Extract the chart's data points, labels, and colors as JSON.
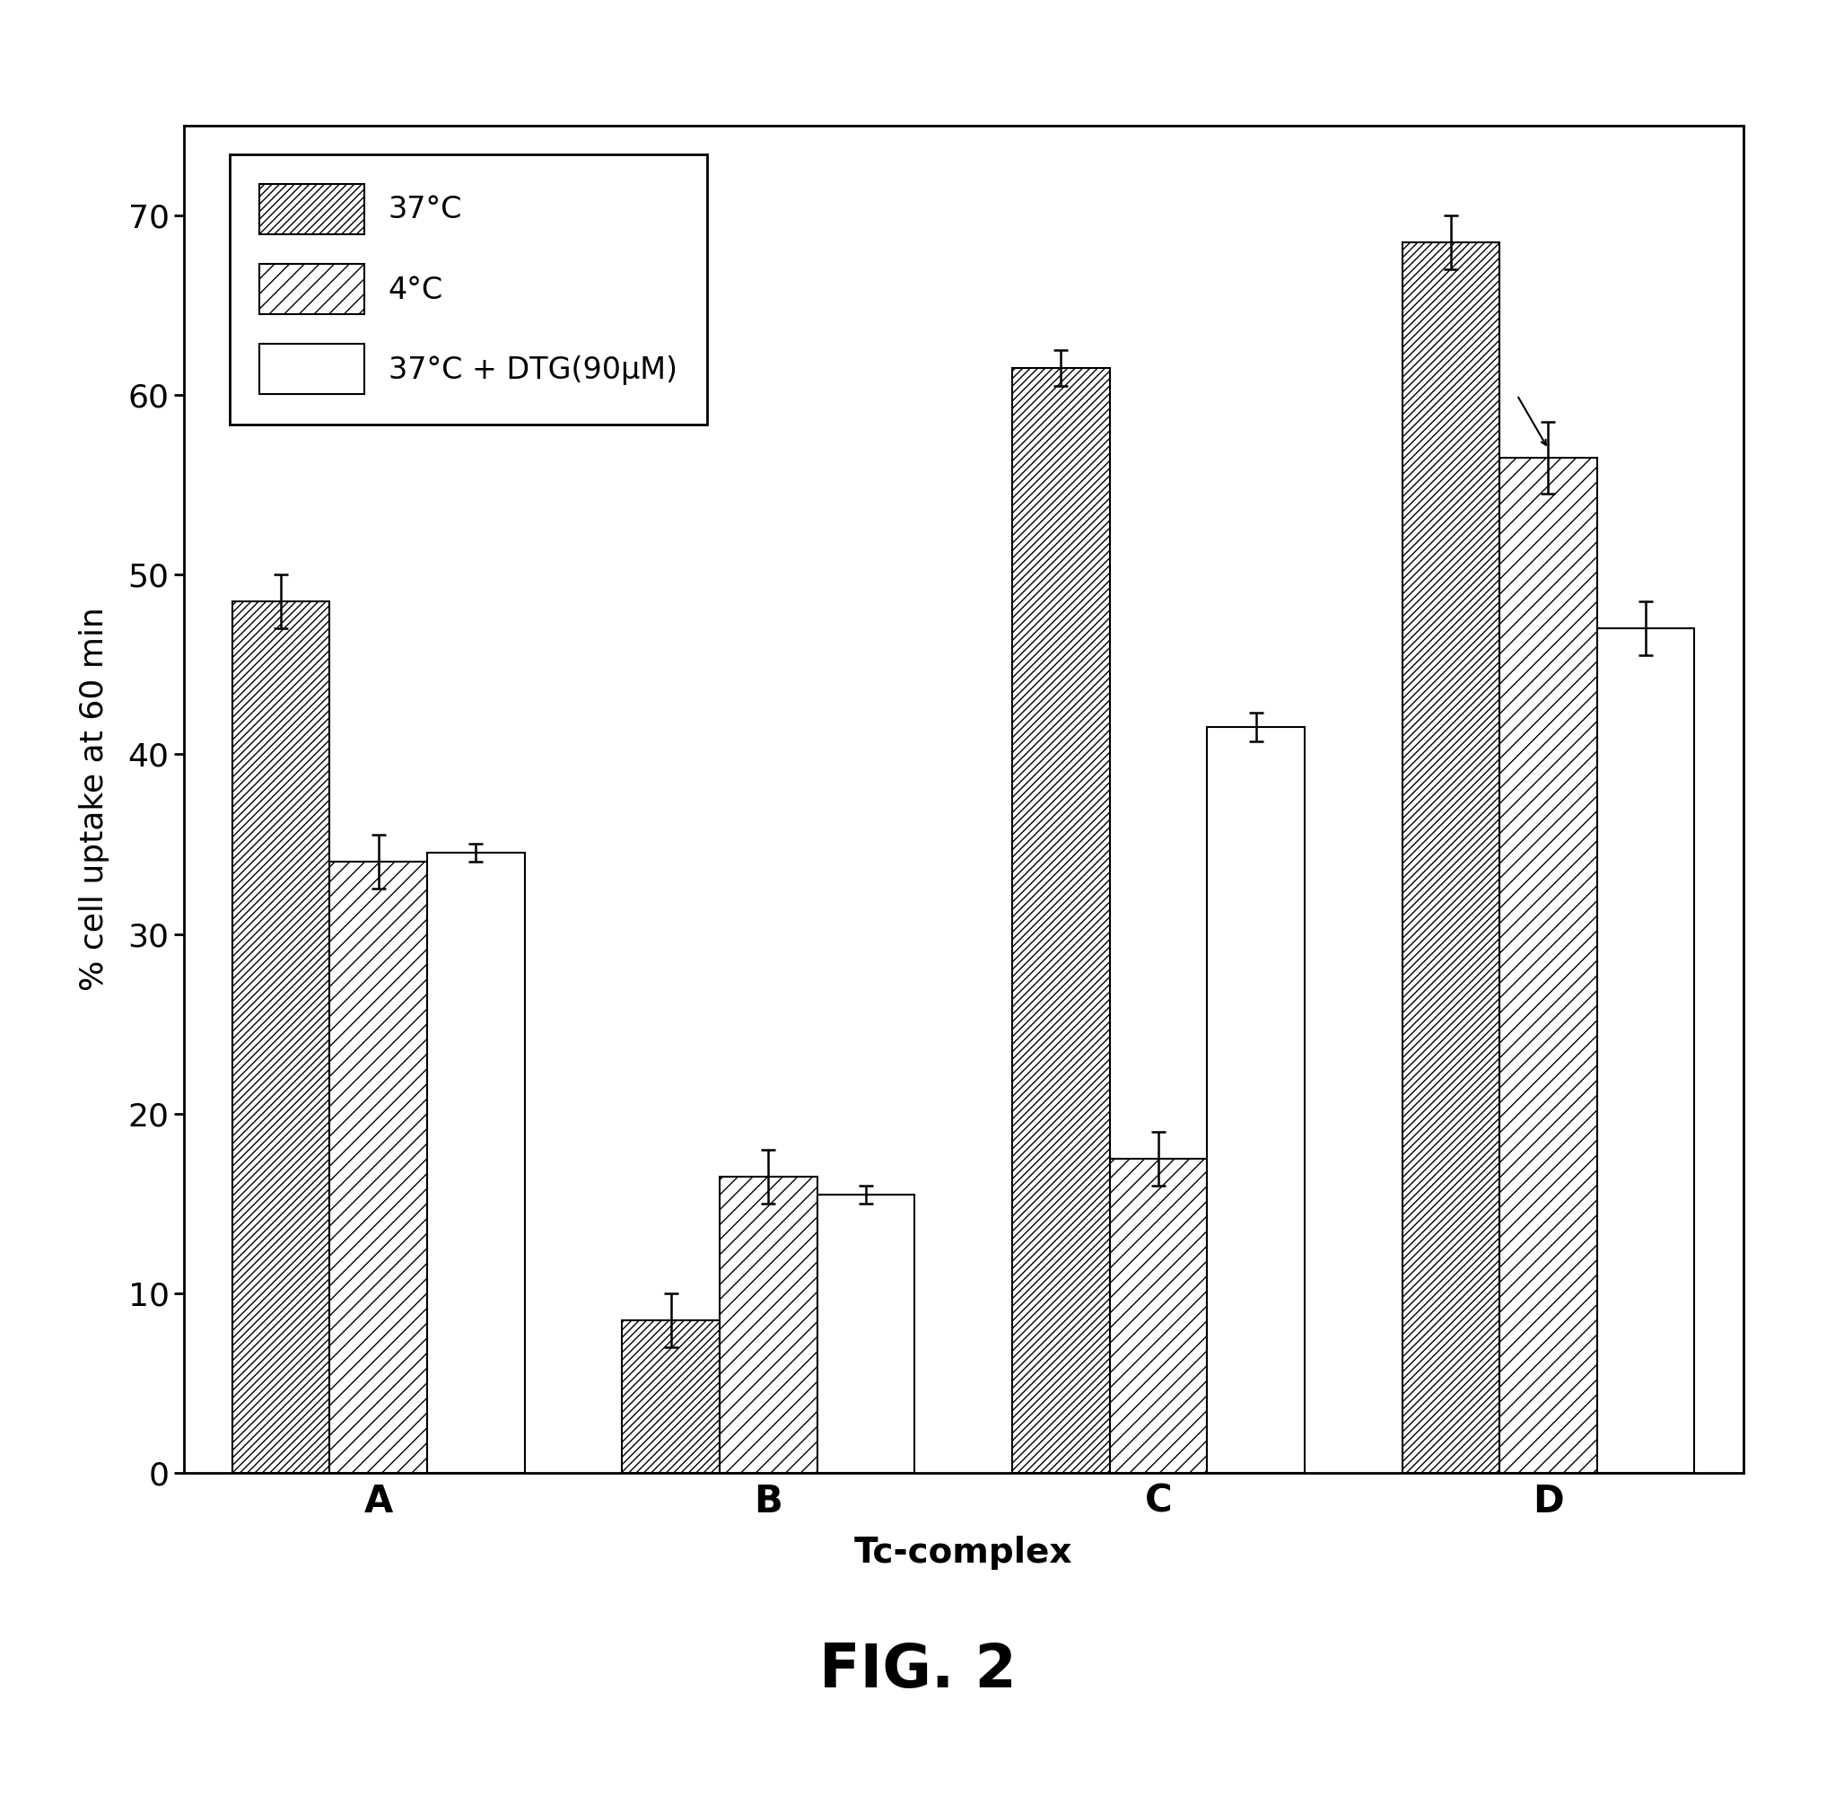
{
  "groups": [
    "A",
    "B",
    "C",
    "D"
  ],
  "series": [
    {
      "label": "37°C",
      "values": [
        48.5,
        8.5,
        61.5,
        68.5
      ],
      "errors": [
        1.5,
        1.5,
        1.0,
        1.5
      ],
      "hatch": "////",
      "facecolor": "white",
      "edgecolor": "black"
    },
    {
      "label": "4°C",
      "values": [
        34.0,
        16.5,
        17.5,
        56.5
      ],
      "errors": [
        1.5,
        1.5,
        1.5,
        2.0
      ],
      "hatch": "//",
      "facecolor": "white",
      "edgecolor": "black"
    },
    {
      "label": "37°C + DTG(90μM)",
      "values": [
        34.5,
        15.5,
        41.5,
        47.0
      ],
      "errors": [
        0.5,
        0.5,
        0.8,
        1.5
      ],
      "hatch": "",
      "facecolor": "white",
      "edgecolor": "black"
    }
  ],
  "xlabel": "Tc-complex",
  "ylabel": "% cell uptake at 60 min",
  "ylim": [
    0,
    75
  ],
  "yticks": [
    0,
    10,
    20,
    30,
    40,
    50,
    60,
    70
  ],
  "figure_label": "FIG. 2",
  "bar_width": 0.25,
  "background_color": "white",
  "arrow_group": 3,
  "arrow_series": 1
}
